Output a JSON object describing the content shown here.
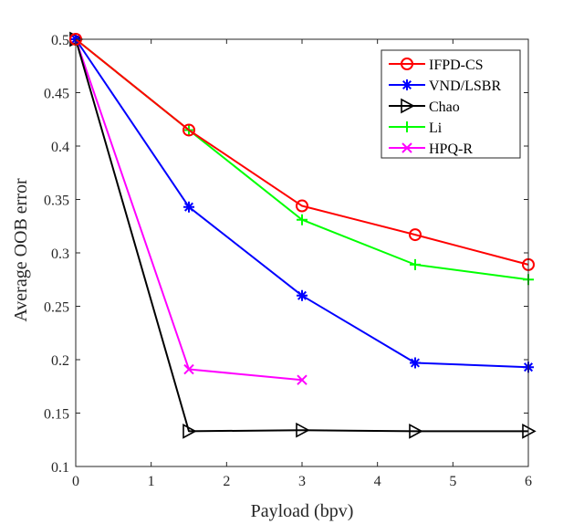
{
  "chart_data": {
    "type": "line",
    "title": "",
    "xlabel": "Payload (bpv)",
    "ylabel": "Average OOB error",
    "xlim": [
      0,
      6
    ],
    "ylim": [
      0.1,
      0.5
    ],
    "xticks": [
      0,
      1,
      2,
      3,
      4,
      5,
      6
    ],
    "yticks": [
      0.1,
      0.15,
      0.2,
      0.25,
      0.3,
      0.35,
      0.4,
      0.45,
      0.5
    ],
    "xtick_labels": [
      "0",
      "1",
      "2",
      "3",
      "4",
      "5",
      "6"
    ],
    "ytick_labels": [
      "0.1",
      "0.15",
      "0.2",
      "0.25",
      "0.3",
      "0.35",
      "0.4",
      "0.45",
      "0.5"
    ],
    "grid": false,
    "legend_position": "top-right",
    "series": [
      {
        "name": "IFPD-CS",
        "color": "#ff0000",
        "marker": "circle",
        "x": [
          0,
          1.5,
          3,
          4.5,
          6
        ],
        "y": [
          0.5,
          0.415,
          0.344,
          0.317,
          0.289
        ]
      },
      {
        "name": "VND/LSBR",
        "color": "#0000ff",
        "marker": "asterisk",
        "x": [
          0,
          1.5,
          3,
          4.5,
          6
        ],
        "y": [
          0.5,
          0.343,
          0.26,
          0.197,
          0.193
        ]
      },
      {
        "name": "Chao",
        "color": "#000000",
        "marker": "triangle-right",
        "x": [
          0,
          1.5,
          3,
          4.5,
          6
        ],
        "y": [
          0.5,
          0.133,
          0.134,
          0.133,
          0.133
        ]
      },
      {
        "name": "Li",
        "color": "#00ff00",
        "marker": "plus",
        "x": [
          0,
          1.5,
          3,
          4.5,
          6
        ],
        "y": [
          0.5,
          0.415,
          0.331,
          0.289,
          0.275
        ]
      },
      {
        "name": "HPQ-R",
        "color": "#ff00ff",
        "marker": "cross",
        "x": [
          0,
          1.5,
          3
        ],
        "y": [
          0.5,
          0.191,
          0.181
        ]
      }
    ]
  }
}
